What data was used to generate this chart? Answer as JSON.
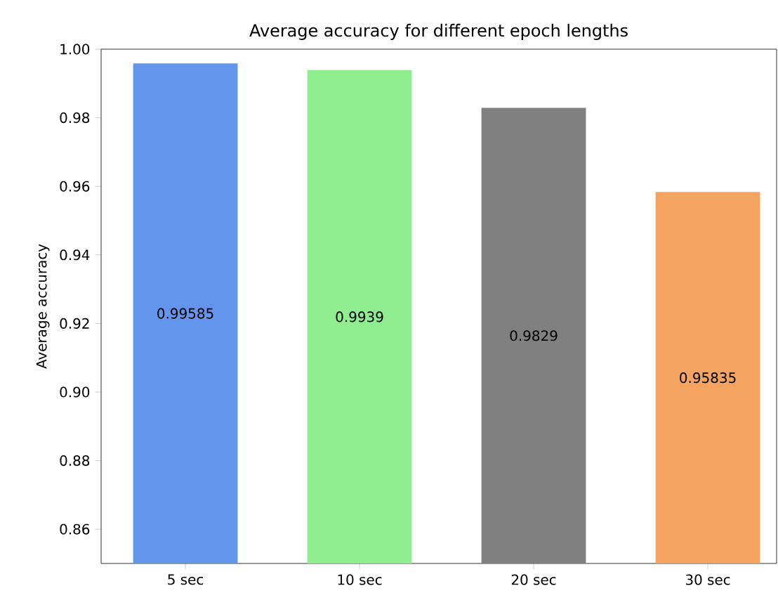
{
  "chart_data": {
    "type": "bar",
    "title": "Average accuracy for different epoch lengths",
    "ylabel": "Average accuracy",
    "categories": [
      "5 sec",
      "10 sec",
      "20 sec",
      "30 sec"
    ],
    "values": [
      0.99585,
      0.9939,
      0.9829,
      0.95835
    ],
    "colors": [
      "#6495ed",
      "#90ee90",
      "#808080",
      "#f4a460"
    ],
    "ylim": [
      0.85,
      1.0
    ],
    "yticks": [
      {
        "value": 0.86,
        "label": "0.86"
      },
      {
        "value": 0.88,
        "label": "0.88"
      },
      {
        "value": 0.9,
        "label": "0.90"
      },
      {
        "value": 0.92,
        "label": "0.92"
      },
      {
        "value": 0.94,
        "label": "0.94"
      },
      {
        "value": 0.96,
        "label": "0.96"
      },
      {
        "value": 0.98,
        "label": "0.98"
      },
      {
        "value": 1.0,
        "label": "1.00"
      }
    ],
    "data_labels": true
  }
}
